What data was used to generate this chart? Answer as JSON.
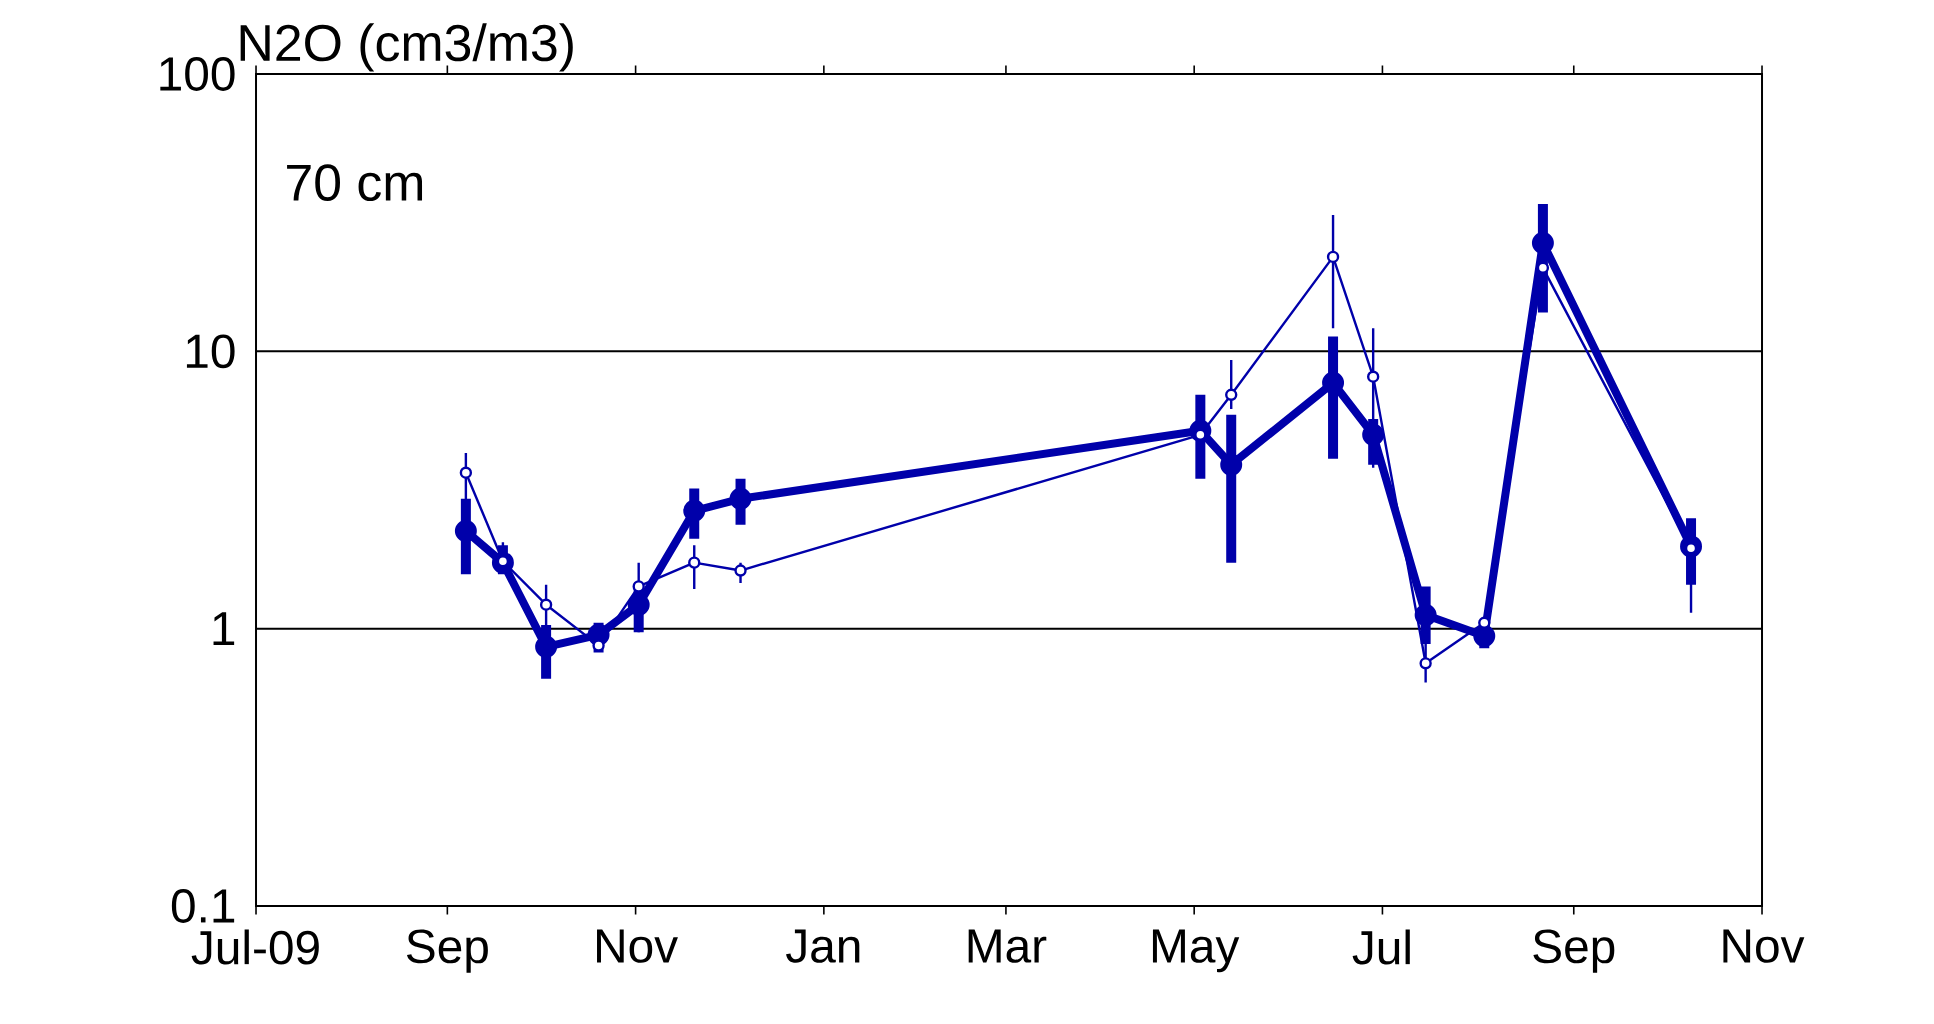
{
  "chart_data": {
    "type": "line",
    "ylabel": "N2O (cm3/m3)",
    "annotations": [
      "70 cm"
    ],
    "log": "y",
    "grid": "y",
    "x": [
      "2009-09-07",
      "2009-09-19",
      "2009-10-03",
      "2009-10-20",
      "2009-11-02",
      "2009-11-20",
      "2009-12-05",
      "2010-05-03",
      "2010-05-13",
      "2010-06-15",
      "2010-06-28",
      "2010-07-15",
      "2010-08-03",
      "2010-08-22",
      "2010-10-09"
    ],
    "xlim": [
      "2009-07-01",
      "2010-11-01"
    ],
    "xticks": [
      {
        "value": "2009-07-01",
        "label": "Jul-09"
      },
      {
        "value": "2009-09-01",
        "label": "Sep"
      },
      {
        "value": "2009-11-01",
        "label": "Nov"
      },
      {
        "value": "2010-01-01",
        "label": "Jan"
      },
      {
        "value": "2010-03-01",
        "label": "Mar"
      },
      {
        "value": "2010-05-01",
        "label": "May"
      },
      {
        "value": "2010-07-01",
        "label": "Jul"
      },
      {
        "value": "2010-09-01",
        "label": "Sep"
      },
      {
        "value": "2010-11-01",
        "label": "Nov"
      }
    ],
    "ylim": [
      0.1,
      100
    ],
    "yticks": [
      0.1,
      1,
      10,
      100
    ],
    "series": [
      {
        "color": "#0000aa",
        "marker": "circle",
        "line_style": "solid",
        "values": [
          2.25,
          1.73,
          0.86,
          0.95,
          1.22,
          2.66,
          2.94,
          5.17,
          3.9,
          7.7,
          5.0,
          1.12,
          0.94,
          24.6,
          1.98
        ],
        "errors": [
          [
            1.57,
            2.94
          ],
          [
            1.57,
            2.0
          ],
          [
            0.66,
            1.03
          ],
          [
            0.82,
            1.05
          ],
          [
            0.97,
            1.44
          ],
          [
            2.11,
            3.2
          ],
          [
            2.37,
            3.47
          ],
          [
            3.47,
            6.97
          ],
          [
            1.73,
            5.9
          ],
          [
            4.1,
            11.3
          ],
          [
            3.9,
            5.7
          ],
          [
            0.88,
            1.42
          ],
          [
            0.85,
            1.03
          ],
          [
            13.8,
            34
          ],
          [
            1.44,
            2.5
          ]
        ]
      },
      {
        "color": "#0000aa",
        "marker": "circle",
        "line_style": "solid",
        "values": [
          3.65,
          1.75,
          1.22,
          0.87,
          1.42,
          1.73,
          1.62,
          5.0,
          6.97,
          21.9,
          8.1,
          0.75,
          1.05,
          20,
          1.95
        ],
        "errors": [
          [
            2.5,
            4.3
          ],
          [
            1.65,
            2.05
          ],
          [
            1.03,
            1.44
          ],
          null,
          [
            0.97,
            1.73
          ],
          [
            1.39,
            2.0
          ],
          [
            1.46,
            1.73
          ],
          null,
          [
            6.2,
            9.3
          ],
          [
            12.1,
            31
          ],
          [
            3.8,
            12.1
          ],
          [
            0.64,
            0.88
          ],
          null,
          null,
          [
            1.14,
            1.88
          ]
        ]
      }
    ]
  }
}
